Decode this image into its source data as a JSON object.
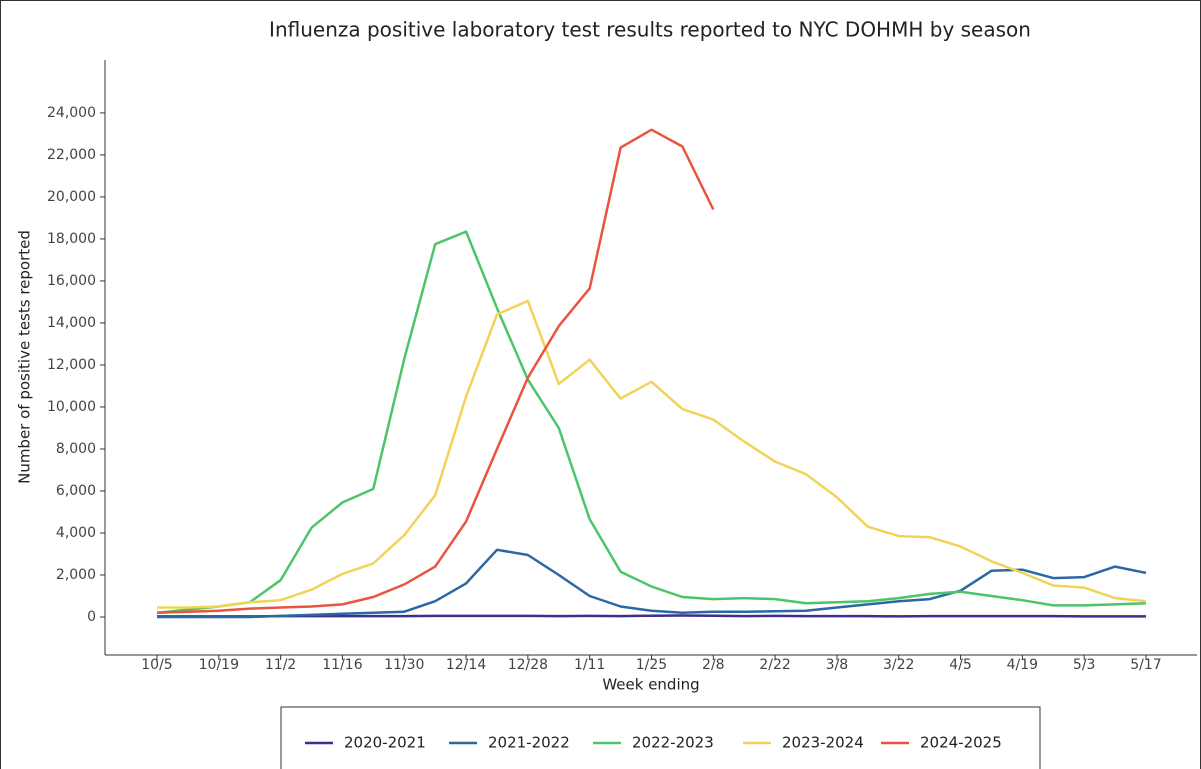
{
  "chart_data": {
    "type": "line",
    "title": "Influenza positive laboratory test results reported to NYC DOHMH by season",
    "x_label": "Week ending",
    "y_label": "Number of positive tests reported",
    "categories": [
      "10/5",
      null,
      "10/19",
      null,
      "11/2",
      null,
      "11/16",
      null,
      "11/30",
      null,
      "12/14",
      null,
      "12/28",
      null,
      "1/11",
      null,
      "1/25",
      null,
      "2/8",
      null,
      "2/22",
      null,
      "3/8",
      null,
      "3/22",
      null,
      "4/5",
      null,
      "4/19",
      null,
      "5/3",
      null,
      "5/17"
    ],
    "ylim": [
      -1810,
      26520
    ],
    "yticks": [
      {
        "value": 0,
        "label": "0"
      },
      {
        "value": 2000,
        "label": "2,000"
      },
      {
        "value": 4000,
        "label": "4,000"
      },
      {
        "value": 6000,
        "label": "6,000"
      },
      {
        "value": 8000,
        "label": "8,000"
      },
      {
        "value": 10000,
        "label": "10,000"
      },
      {
        "value": 12000,
        "label": "12,000"
      },
      {
        "value": 14000,
        "label": "14,000"
      },
      {
        "value": 16000,
        "label": "16,000"
      },
      {
        "value": 18000,
        "label": "18,000"
      },
      {
        "value": 20000,
        "label": "20,000"
      },
      {
        "value": 22000,
        "label": "22,000"
      },
      {
        "value": 24000,
        "label": "24,000"
      }
    ],
    "grid": false,
    "legend": "bottom",
    "series": [
      {
        "name": "2020-2021",
        "color": "#3f2e8c",
        "values": [
          30,
          30,
          30,
          30,
          40,
          40,
          40,
          40,
          40,
          50,
          50,
          50,
          50,
          40,
          50,
          40,
          60,
          70,
          60,
          40,
          50,
          40,
          40,
          40,
          30,
          40,
          40,
          40,
          40,
          40,
          30,
          30,
          30
        ]
      },
      {
        "name": "2021-2022",
        "color": "#2b67a3",
        "values": [
          0,
          0,
          0,
          0,
          50,
          100,
          150,
          200,
          250,
          750,
          1600,
          3200,
          2950,
          2000,
          1000,
          500,
          300,
          200,
          250,
          250,
          270,
          300,
          450,
          600,
          750,
          850,
          1250,
          2200,
          2250,
          1850,
          1900,
          2400,
          2100
        ]
      },
      {
        "name": "2022-2023",
        "color": "#4cc46a",
        "values": [
          200,
          350,
          500,
          700,
          1750,
          4250,
          5450,
          6100,
          12300,
          17750,
          18350,
          14700,
          11300,
          9000,
          4650,
          2150,
          1450,
          950,
          850,
          900,
          850,
          650,
          700,
          750,
          900,
          1100,
          1200,
          1000,
          800,
          550,
          550,
          600,
          650
        ]
      },
      {
        "name": "2023-2024",
        "color": "#f2d35a",
        "values": [
          450,
          450,
          500,
          700,
          800,
          1300,
          2050,
          2550,
          3900,
          5800,
          10500,
          14400,
          15050,
          11100,
          12250,
          10400,
          11200,
          9900,
          9400,
          8350,
          7400,
          6800,
          5700,
          4300,
          3850,
          3800,
          3350,
          2650,
          2100,
          1500,
          1400,
          900,
          750
        ]
      },
      {
        "name": "2024-2025",
        "color": "#e8553f",
        "values": [
          200,
          250,
          300,
          400,
          450,
          500,
          600,
          950,
          1550,
          2400,
          4550,
          8000,
          11400,
          13850,
          15650,
          22350,
          23200,
          22400,
          19400,
          null,
          null,
          null,
          null,
          null,
          null,
          null,
          null,
          null,
          null,
          null,
          null,
          null,
          null
        ]
      }
    ]
  }
}
